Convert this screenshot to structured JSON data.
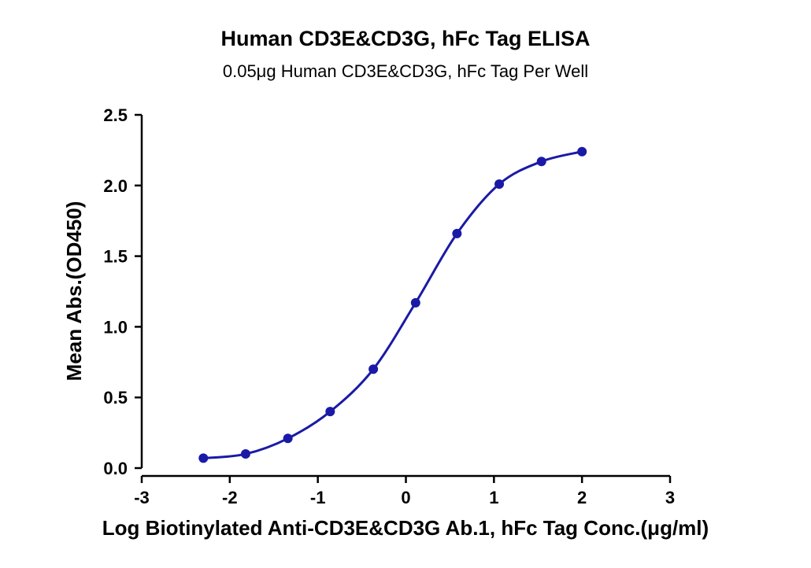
{
  "chart_data": {
    "type": "scatter",
    "title": "Human CD3E&CD3G, hFc Tag ELISA",
    "subtitle": "0.05μg Human CD3E&CD3G, hFc Tag Per Well",
    "xlabel": "Log Biotinylated Anti-CD3E&CD3G Ab.1, hFc Tag Conc.(μg/ml)",
    "ylabel": "Mean Abs.(OD450)",
    "xlim": [
      -3,
      3
    ],
    "ylim": [
      0,
      2.5
    ],
    "x_ticks": [
      "-3",
      "-2",
      "-1",
      "0",
      "1",
      "2",
      "3"
    ],
    "y_ticks": [
      "0.0",
      "0.5",
      "1.0",
      "1.5",
      "2.0",
      "2.5"
    ],
    "grid": false,
    "series": [
      {
        "x": [
          -2.3,
          -1.82,
          -1.34,
          -0.86,
          -0.37,
          0.11,
          0.58,
          1.06,
          1.54,
          2.0
        ],
        "y": [
          0.07,
          0.1,
          0.21,
          0.4,
          0.7,
          1.17,
          1.66,
          2.01,
          2.17,
          2.24
        ],
        "color": "#1a1aa6",
        "fit_curve": true
      }
    ]
  }
}
